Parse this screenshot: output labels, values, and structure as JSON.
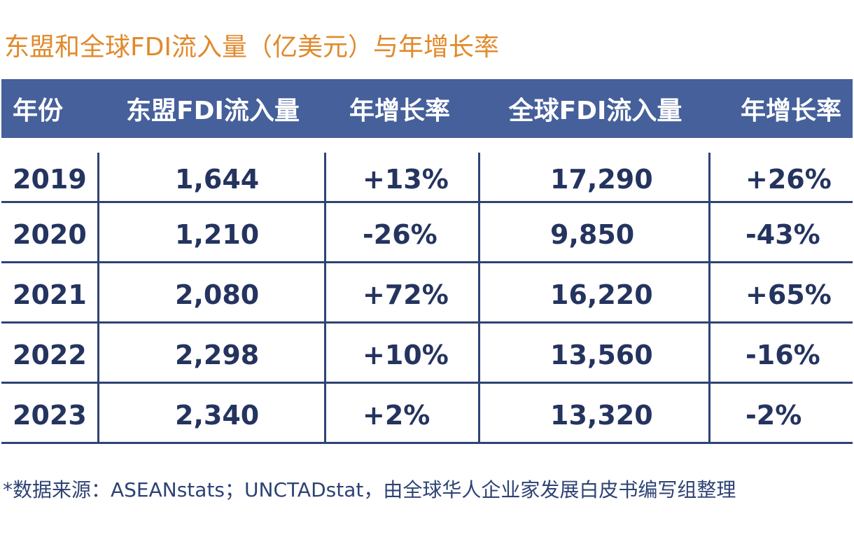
{
  "title": "东盟和全球FDI流入量（亿美元）与年增长率",
  "table": {
    "headers": [
      "年份",
      "东盟FDI流入量",
      "年增长率",
      "全球FDI流入量",
      "年增长率"
    ],
    "rows": [
      [
        "2019",
        "1,644",
        "+13%",
        "17,290",
        "+26%"
      ],
      [
        "2020",
        "1,210",
        "-26%",
        "9,850",
        "-43%"
      ],
      [
        "2021",
        "2,080",
        "+72%",
        "16,220",
        "+65%"
      ],
      [
        "2022",
        "2,298",
        "+10%",
        "13,560",
        "-16%"
      ],
      [
        "2023",
        "2,340",
        "+2%",
        "13,320",
        "-2%"
      ]
    ]
  },
  "source": "*数据来源：ASEANstats；UNCTADstat，由全球华人企业家发展白皮书编写组整理",
  "colors": {
    "title": "#e08a2c",
    "header_bg": "#45609b",
    "text": "#24345f"
  }
}
